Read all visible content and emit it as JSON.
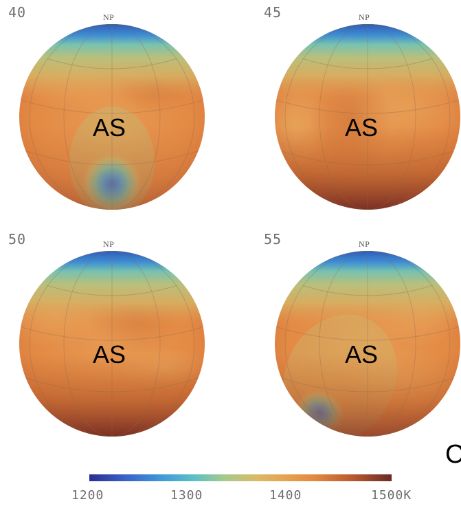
{
  "panels": [
    {
      "label": "40",
      "pole": "NP",
      "region": "AS"
    },
    {
      "label": "45",
      "pole": "NP",
      "region": "AS"
    },
    {
      "label": "50",
      "pole": "NP",
      "region": "AS"
    },
    {
      "label": "55",
      "pole": "NP",
      "region": "AS"
    }
  ],
  "cut_text": "C",
  "colorbar": {
    "ticks": [
      "1200",
      "1300",
      "1400",
      "1500K"
    ],
    "colors": [
      "#2b2f8f",
      "#3a78d8",
      "#4bb6d8",
      "#8fc8a0",
      "#c9c77a",
      "#e7a957",
      "#e08840",
      "#c7672f",
      "#8d3a2a",
      "#6a2a28"
    ]
  }
}
